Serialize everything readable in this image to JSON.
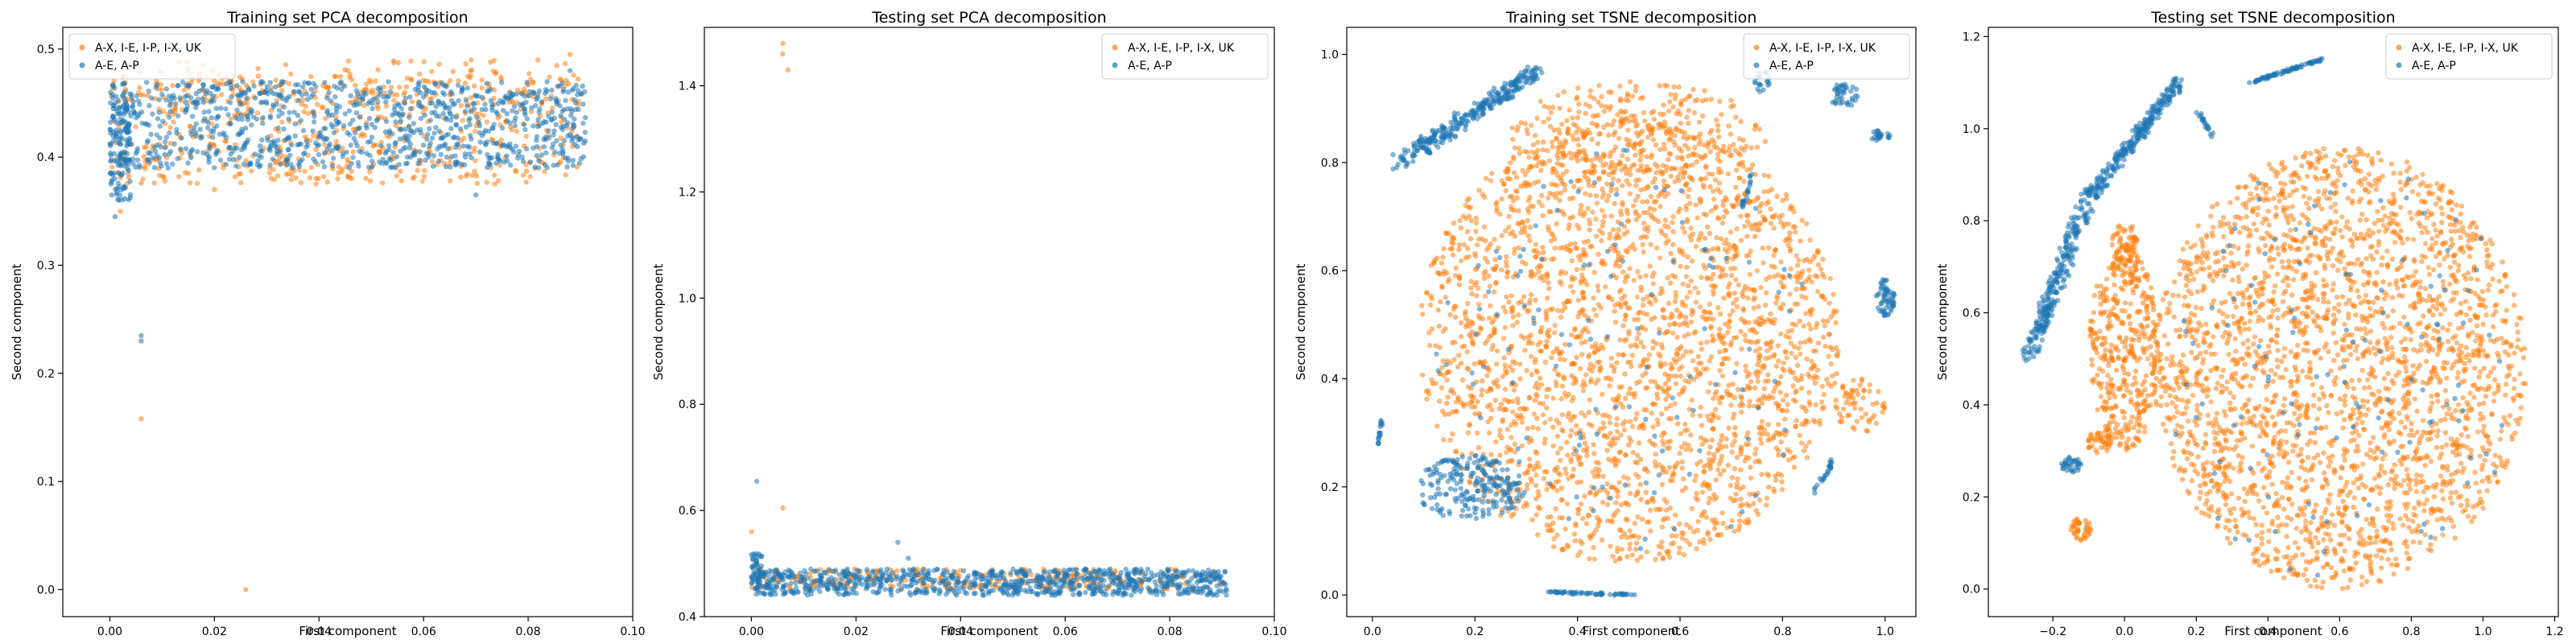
{
  "figure": {
    "colors": {
      "orange": "#ff7f0e",
      "blue": "#1f77b4"
    }
  },
  "chart_data": [
    {
      "type": "scatter",
      "title": "Training set PCA decomposition",
      "xlabel": "First component",
      "ylabel": "Second component",
      "xlim": [
        -0.009,
        0.1
      ],
      "ylim": [
        -0.025,
        0.52
      ],
      "xticks": [
        {
          "v": 0.0,
          "label": "0.00"
        },
        {
          "v": 0.02,
          "label": "0.02"
        },
        {
          "v": 0.04,
          "label": "0.04"
        },
        {
          "v": 0.06,
          "label": "0.06"
        },
        {
          "v": 0.08,
          "label": "0.08"
        },
        {
          "v": 0.1,
          "label": "0.10"
        }
      ],
      "yticks": [
        {
          "v": 0.0,
          "label": "0.0"
        },
        {
          "v": 0.1,
          "label": "0.1"
        },
        {
          "v": 0.2,
          "label": "0.2"
        },
        {
          "v": 0.3,
          "label": "0.3"
        },
        {
          "v": 0.4,
          "label": "0.4"
        },
        {
          "v": 0.5,
          "label": "0.5"
        }
      ],
      "legend": "upper-left",
      "series": [
        {
          "name": "A-X, I-E, I-P, I-X, UK",
          "color": "#ff7f0e",
          "clusters": [
            {
              "shape": "box",
              "x": [
                0.0,
                0.09
              ],
              "y": [
                0.375,
                0.475
              ],
              "n": 500
            },
            {
              "shape": "box",
              "x": [
                0.0,
                0.09
              ],
              "y": [
                0.45,
                0.49
              ],
              "n": 120
            }
          ],
          "points": [
            [
              0.006,
              0.158
            ],
            [
              0.026,
              0.0
            ],
            [
              0.002,
              0.35
            ],
            [
              0.02,
              0.37
            ],
            [
              0.05,
              0.39
            ],
            [
              0.088,
              0.495
            ]
          ]
        },
        {
          "name": "A-E, A-P",
          "color": "#1f77b4",
          "clusters": [
            {
              "shape": "box",
              "x": [
                0.0,
                0.091
              ],
              "y": [
                0.39,
                0.47
              ],
              "n": 1000
            },
            {
              "shape": "box",
              "x": [
                0.0,
                0.004
              ],
              "y": [
                0.36,
                0.46
              ],
              "n": 120
            }
          ],
          "points": [
            [
              0.006,
              0.235
            ],
            [
              0.006,
              0.23
            ],
            [
              0.001,
              0.345
            ],
            [
              0.07,
              0.365
            ],
            [
              0.088,
              0.48
            ]
          ]
        }
      ]
    },
    {
      "type": "scatter",
      "title": "Testing set PCA decomposition",
      "xlabel": "First component",
      "ylabel": "Second component",
      "xlim": [
        -0.009,
        0.1
      ],
      "ylim": [
        0.4,
        1.51
      ],
      "xticks": [
        {
          "v": 0.0,
          "label": "0.00"
        },
        {
          "v": 0.02,
          "label": "0.02"
        },
        {
          "v": 0.04,
          "label": "0.04"
        },
        {
          "v": 0.06,
          "label": "0.06"
        },
        {
          "v": 0.08,
          "label": "0.08"
        },
        {
          "v": 0.1,
          "label": "0.10"
        }
      ],
      "yticks": [
        {
          "v": 0.4,
          "label": "0.4"
        },
        {
          "v": 0.6,
          "label": "0.6"
        },
        {
          "v": 0.8,
          "label": "0.8"
        },
        {
          "v": 1.0,
          "label": "1.0"
        },
        {
          "v": 1.2,
          "label": "1.2"
        },
        {
          "v": 1.4,
          "label": "1.4"
        }
      ],
      "legend": "upper-right",
      "series": [
        {
          "name": "A-X, I-E, I-P, I-X, UK",
          "color": "#ff7f0e",
          "clusters": [
            {
              "shape": "box",
              "x": [
                0.0,
                0.09
              ],
              "y": [
                0.45,
                0.49
              ],
              "n": 250
            }
          ],
          "points": [
            [
              0.006,
              1.48
            ],
            [
              0.006,
              1.46
            ],
            [
              0.007,
              1.43
            ],
            [
              0.006,
              0.605
            ],
            [
              0.0,
              0.56
            ]
          ]
        },
        {
          "name": "A-E, A-P",
          "color": "#1f77b4",
          "clusters": [
            {
              "shape": "box",
              "x": [
                0.0,
                0.091
              ],
              "y": [
                0.44,
                0.49
              ],
              "n": 900
            },
            {
              "shape": "box",
              "x": [
                0.0,
                0.002
              ],
              "y": [
                0.45,
                0.52
              ],
              "n": 40
            }
          ],
          "points": [
            [
              0.001,
              0.655
            ],
            [
              0.028,
              0.54
            ],
            [
              0.03,
              0.51
            ]
          ]
        }
      ]
    },
    {
      "type": "scatter",
      "title": "Training set TSNE decomposition",
      "xlabel": "First component",
      "ylabel": "Second component",
      "xlim": [
        -0.05,
        1.06
      ],
      "ylim": [
        -0.04,
        1.05
      ],
      "xticks": [
        {
          "v": 0.0,
          "label": "0.0"
        },
        {
          "v": 0.2,
          "label": "0.2"
        },
        {
          "v": 0.4,
          "label": "0.4"
        },
        {
          "v": 0.6,
          "label": "0.6"
        },
        {
          "v": 0.8,
          "label": "0.8"
        },
        {
          "v": 1.0,
          "label": "1.0"
        }
      ],
      "yticks": [
        {
          "v": 0.0,
          "label": "0.0"
        },
        {
          "v": 0.2,
          "label": "0.2"
        },
        {
          "v": 0.4,
          "label": "0.4"
        },
        {
          "v": 0.6,
          "label": "0.6"
        },
        {
          "v": 0.8,
          "label": "0.8"
        },
        {
          "v": 1.0,
          "label": "1.0"
        }
      ],
      "legend": "upper-right",
      "series": [
        {
          "name": "A-X, I-E, I-P, I-X, UK",
          "color": "#ff7f0e",
          "clusters": [
            {
              "shape": "ellipse",
              "cx": 0.5,
              "cy": 0.47,
              "rx": 0.41,
              "ry": 0.41,
              "n": 2600
            },
            {
              "shape": "ellipse",
              "cx": 0.52,
              "cy": 0.85,
              "rx": 0.25,
              "ry": 0.1,
              "n": 300
            },
            {
              "shape": "ellipse",
              "cx": 0.95,
              "cy": 0.35,
              "rx": 0.05,
              "ry": 0.05,
              "n": 60
            }
          ],
          "points": []
        },
        {
          "name": "A-E, A-P",
          "color": "#1f77b4",
          "clusters": [
            {
              "shape": "band",
              "x0": 0.05,
              "y0": 0.8,
              "x1": 0.32,
              "y1": 0.97,
              "w": 0.03,
              "n": 300
            },
            {
              "shape": "ellipse",
              "cx": 0.19,
              "cy": 0.2,
              "rx": 0.11,
              "ry": 0.06,
              "n": 220
            },
            {
              "shape": "ellipse",
              "cx": 1.0,
              "cy": 0.55,
              "rx": 0.018,
              "ry": 0.035,
              "n": 60
            },
            {
              "shape": "ellipse",
              "cx": 0.92,
              "cy": 0.925,
              "rx": 0.03,
              "ry": 0.022,
              "n": 40
            },
            {
              "shape": "ellipse",
              "cx": 0.99,
              "cy": 0.85,
              "rx": 0.02,
              "ry": 0.012,
              "n": 25
            },
            {
              "shape": "ellipse",
              "cx": 0.76,
              "cy": 0.95,
              "rx": 0.015,
              "ry": 0.02,
              "n": 18
            },
            {
              "shape": "band",
              "x0": 0.72,
              "y0": 0.71,
              "x1": 0.74,
              "y1": 0.78,
              "w": 0.008,
              "n": 20
            },
            {
              "shape": "band",
              "x0": 0.86,
              "y0": 0.19,
              "x1": 0.9,
              "y1": 0.25,
              "w": 0.008,
              "n": 25
            },
            {
              "shape": "band",
              "x0": 0.34,
              "y0": 0.005,
              "x1": 0.52,
              "y1": 0.0,
              "w": 0.004,
              "n": 60
            },
            {
              "shape": "band",
              "x0": 0.01,
              "y0": 0.27,
              "x1": 0.02,
              "y1": 0.33,
              "w": 0.004,
              "n": 18
            },
            {
              "shape": "ellipse",
              "cx": 0.5,
              "cy": 0.45,
              "rx": 0.38,
              "ry": 0.38,
              "n": 120
            }
          ],
          "points": []
        }
      ]
    },
    {
      "type": "scatter",
      "title": "Testing set TSNE decomposition",
      "xlabel": "First component",
      "ylabel": "Second component",
      "xlim": [
        -0.38,
        1.21
      ],
      "ylim": [
        -0.06,
        1.22
      ],
      "xticks": [
        {
          "v": -0.2,
          "label": "−0.2"
        },
        {
          "v": 0.0,
          "label": "0.0"
        },
        {
          "v": 0.2,
          "label": "0.2"
        },
        {
          "v": 0.4,
          "label": "0.4"
        },
        {
          "v": 0.6,
          "label": "0.6"
        },
        {
          "v": 0.8,
          "label": "0.8"
        },
        {
          "v": 1.0,
          "label": "1.0"
        },
        {
          "v": 1.2,
          "label": "1.2"
        }
      ],
      "yticks": [
        {
          "v": 0.0,
          "label": "0.0"
        },
        {
          "v": 0.2,
          "label": "0.2"
        },
        {
          "v": 0.4,
          "label": "0.4"
        },
        {
          "v": 0.6,
          "label": "0.6"
        },
        {
          "v": 0.8,
          "label": "0.8"
        },
        {
          "v": 1.0,
          "label": "1.0"
        },
        {
          "v": 1.2,
          "label": "1.2"
        }
      ],
      "legend": "upper-right",
      "series": [
        {
          "name": "A-X, I-E, I-P, I-X, UK",
          "color": "#ff7f0e",
          "clusters": [
            {
              "shape": "ellipse",
              "cx": 0.6,
              "cy": 0.48,
              "rx": 0.52,
              "ry": 0.48,
              "n": 2600
            },
            {
              "shape": "ellipse",
              "cx": 0.0,
              "cy": 0.52,
              "rx": 0.1,
              "ry": 0.22,
              "n": 400
            },
            {
              "shape": "ellipse",
              "cx": 0.0,
              "cy": 0.73,
              "rx": 0.04,
              "ry": 0.07,
              "n": 80
            },
            {
              "shape": "ellipse",
              "cx": -0.07,
              "cy": 0.32,
              "rx": 0.035,
              "ry": 0.025,
              "n": 40
            },
            {
              "shape": "ellipse",
              "cx": -0.12,
              "cy": 0.13,
              "rx": 0.03,
              "ry": 0.025,
              "n": 40
            }
          ],
          "points": []
        },
        {
          "name": "A-E, A-P",
          "color": "#1f77b4",
          "clusters": [
            {
              "shape": "band",
              "x0": -0.27,
              "y0": 0.5,
              "x1": -0.1,
              "y1": 0.85,
              "w": 0.04,
              "n": 260
            },
            {
              "shape": "band",
              "x0": -0.1,
              "y0": 0.85,
              "x1": 0.15,
              "y1": 1.1,
              "w": 0.03,
              "n": 260
            },
            {
              "shape": "band",
              "x0": 0.35,
              "y0": 1.1,
              "x1": 0.55,
              "y1": 1.15,
              "w": 0.006,
              "n": 80
            },
            {
              "shape": "band",
              "x0": 0.2,
              "y0": 1.04,
              "x1": 0.25,
              "y1": 0.98,
              "w": 0.01,
              "n": 20
            },
            {
              "shape": "ellipse",
              "cx": -0.15,
              "cy": 0.27,
              "rx": 0.03,
              "ry": 0.018,
              "n": 35
            },
            {
              "shape": "ellipse",
              "cx": 0.6,
              "cy": 0.48,
              "rx": 0.5,
              "ry": 0.46,
              "n": 120
            }
          ],
          "points": []
        }
      ]
    }
  ]
}
